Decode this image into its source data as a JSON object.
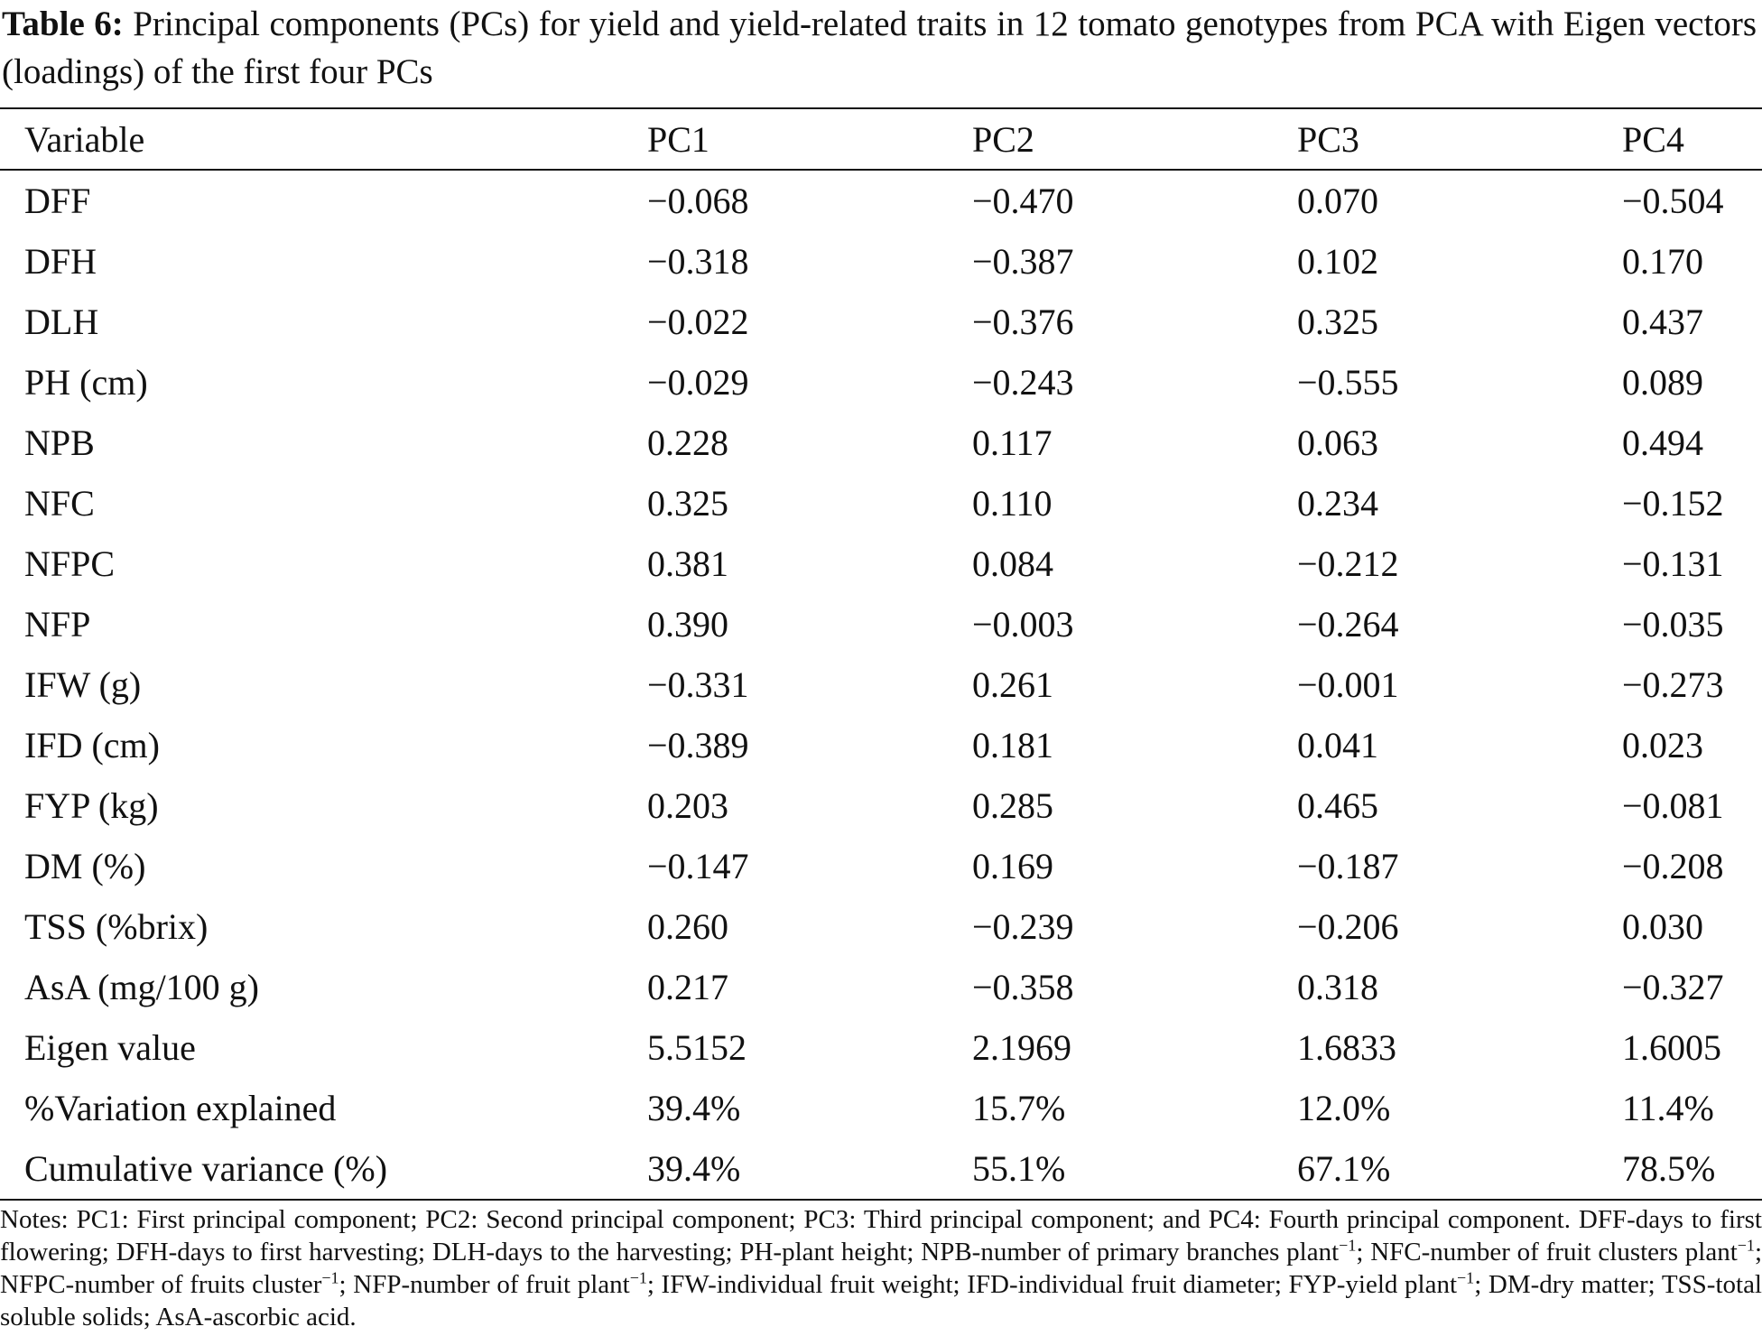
{
  "caption": {
    "label": "Table 6:",
    "text": "Principal components (PCs) for yield and yield-related traits in 12 tomato genotypes from PCA with Eigen vectors (loadings) of the first four PCs"
  },
  "table": {
    "headers": [
      "Variable",
      "PC1",
      "PC2",
      "PC3",
      "PC4"
    ],
    "rows": [
      [
        "DFF",
        "−0.068",
        "−0.470",
        "0.070",
        "−0.504"
      ],
      [
        "DFH",
        "−0.318",
        "−0.387",
        "0.102",
        "0.170"
      ],
      [
        "DLH",
        "−0.022",
        "−0.376",
        "0.325",
        "0.437"
      ],
      [
        "PH (cm)",
        "−0.029",
        "−0.243",
        "−0.555",
        "0.089"
      ],
      [
        "NPB",
        "0.228",
        "0.117",
        "0.063",
        "0.494"
      ],
      [
        "NFC",
        "0.325",
        "0.110",
        "0.234",
        "−0.152"
      ],
      [
        "NFPC",
        "0.381",
        "0.084",
        "−0.212",
        "−0.131"
      ],
      [
        "NFP",
        "0.390",
        "−0.003",
        "−0.264",
        "−0.035"
      ],
      [
        "IFW (g)",
        "−0.331",
        "0.261",
        "−0.001",
        "−0.273"
      ],
      [
        "IFD (cm)",
        "−0.389",
        "0.181",
        "0.041",
        "0.023"
      ],
      [
        "FYP (kg)",
        "0.203",
        "0.285",
        "0.465",
        "−0.081"
      ],
      [
        "DM (%)",
        "−0.147",
        "0.169",
        "−0.187",
        "−0.208"
      ],
      [
        "TSS (%brix)",
        "0.260",
        "−0.239",
        "−0.206",
        "0.030"
      ],
      [
        "AsA (mg/100 g)",
        "0.217",
        "−0.358",
        "0.318",
        "−0.327"
      ],
      [
        "Eigen value",
        "5.5152",
        "2.1969",
        "1.6833",
        "1.6005"
      ],
      [
        "%Variation explained",
        "39.4%",
        "15.7%",
        "12.0%",
        "11.4%"
      ],
      [
        "Cumulative variance (%)",
        "39.4%",
        "55.1%",
        "67.1%",
        "78.5%"
      ]
    ]
  },
  "notes": {
    "s1": "Notes: PC1: First principal component; PC2: Second principal component; PC3: Third principal component; and PC4: Fourth principal component. DFF-days to first flowering; DFH-days to first harvesting; DLH-days to the harvesting; PH-plant height; NPB-number of primary branches plant",
    "s2": "; NFC-number of fruit clusters plant",
    "s3": "; NFPC-number of fruits cluster",
    "s4": "; NFP-number of fruit plant",
    "s5": "; IFW-individual fruit weight; IFD-individual fruit diameter; FYP-yield plant",
    "s6": "; DM-dry matter; TSS-total soluble solids; AsA-ascorbic acid.",
    "sup": "−1"
  }
}
